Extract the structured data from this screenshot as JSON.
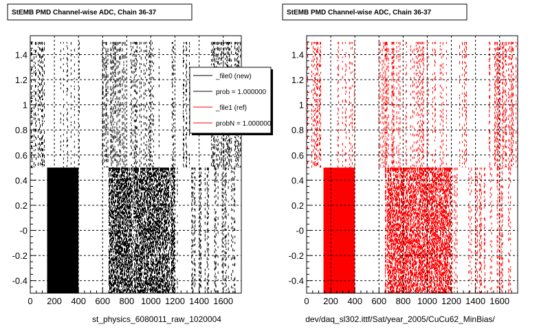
{
  "chart_data": [
    {
      "type": "scatter",
      "title": "StEMB PMD Channel-wise ADC, Chain 36-37",
      "xlabel": "st_physics_6080011_raw_1020004",
      "ylabel": "",
      "xlim": [
        0,
        1750
      ],
      "ylim": [
        -0.5,
        1.55
      ],
      "x_ticks": [
        0,
        200,
        400,
        600,
        800,
        1000,
        1200,
        1400,
        1600
      ],
      "y_ticks": [
        -0.4,
        -0.2,
        0,
        0.2,
        0.4,
        0.6,
        0.8,
        1,
        1.2,
        1.4
      ],
      "y_tick_labels": [
        "-0.4",
        "-0.2",
        "-0",
        "0.2",
        "0.4",
        "0.6",
        "0.8",
        "1",
        "1.2",
        "1.4"
      ],
      "grid": true,
      "marker_color": "#000000",
      "series": [
        {
          "point_bands": [
            {
              "x": [
                0,
                130
              ],
              "y": [
                0.5,
                1.5
              ],
              "density": 0.35
            },
            {
              "x": [
                250,
                410
              ],
              "y": [
                0.5,
                1.5
              ],
              "density": 0.25
            },
            {
              "x": [
                590,
                790
              ],
              "y": [
                0.5,
                1.5
              ],
              "density": 0.45
            },
            {
              "x": [
                820,
                1210
              ],
              "y": [
                0.5,
                1.5
              ],
              "density": 0.25
            },
            {
              "x": [
                1260,
                1330
              ],
              "y": [
                0.5,
                1.5
              ],
              "density": 0.35
            },
            {
              "x": [
                1500,
                1750
              ],
              "y": [
                0.5,
                1.5
              ],
              "density": 0.4
            },
            {
              "x": [
                140,
                400
              ],
              "y": [
                -0.5,
                0.5
              ],
              "density": 1.0
            },
            {
              "x": [
                650,
                1200
              ],
              "y": [
                -0.5,
                0.5
              ],
              "density": 0.7
            },
            {
              "x": [
                1200,
                1250
              ],
              "y": [
                -0.5,
                0.5
              ],
              "density": 0.35
            },
            {
              "x": [
                1330,
                1370
              ],
              "y": [
                -0.5,
                0.5
              ],
              "density": 0.3
            },
            {
              "x": [
                1390,
                1480
              ],
              "y": [
                -0.5,
                0.5
              ],
              "density": 0.35
            },
            {
              "x": [
                1520,
                1650
              ],
              "y": [
                -0.5,
                0.5
              ],
              "density": 0.3
            },
            {
              "x": [
                1660,
                1700
              ],
              "y": [
                -0.5,
                0.5
              ],
              "density": 0.3
            }
          ]
        }
      ],
      "legend": {
        "placement": "top-right",
        "entries": [
          {
            "label": "_file0 (new)",
            "color": "#000000"
          },
          {
            "label": "prob = 1.000000",
            "color": "#000000"
          },
          {
            "label": "_file1 (ref)",
            "color": "#ff0000"
          },
          {
            "label": "probN = 1.000000",
            "color": "#ff0000"
          }
        ]
      }
    },
    {
      "type": "scatter",
      "title": "StEMB PMD Channel-wise ADC, Chain 36-37",
      "xlabel": "dev/daq_sl302.ittf/Sat/year_2005/CuCu62_MinBias/",
      "ylabel": "",
      "xlim": [
        0,
        1750
      ],
      "ylim": [
        -0.5,
        1.55
      ],
      "x_ticks": [
        0,
        200,
        400,
        600,
        800,
        1000,
        1200,
        1400,
        1600
      ],
      "y_ticks": [
        -0.4,
        -0.2,
        0,
        0.2,
        0.4,
        0.6,
        0.8,
        1,
        1.2,
        1.4
      ],
      "y_tick_labels": [
        "-0.4",
        "-0.2",
        "-0",
        "0.2",
        "0.4",
        "0.6",
        "0.8",
        "1",
        "1.2",
        "1.4"
      ],
      "grid": true,
      "marker_color": "#ff0000",
      "series": [
        {
          "point_bands": [
            {
              "x": [
                0,
                130
              ],
              "y": [
                0.5,
                1.5
              ],
              "density": 0.35
            },
            {
              "x": [
                250,
                410
              ],
              "y": [
                0.5,
                1.5
              ],
              "density": 0.25
            },
            {
              "x": [
                590,
                790
              ],
              "y": [
                0.5,
                1.5
              ],
              "density": 0.45
            },
            {
              "x": [
                820,
                1210
              ],
              "y": [
                0.5,
                1.5
              ],
              "density": 0.25
            },
            {
              "x": [
                1260,
                1330
              ],
              "y": [
                0.5,
                1.5
              ],
              "density": 0.35
            },
            {
              "x": [
                1500,
                1750
              ],
              "y": [
                0.5,
                1.5
              ],
              "density": 0.4
            },
            {
              "x": [
                140,
                400
              ],
              "y": [
                -0.5,
                0.5
              ],
              "density": 1.0
            },
            {
              "x": [
                650,
                1200
              ],
              "y": [
                -0.5,
                0.5
              ],
              "density": 0.7
            },
            {
              "x": [
                1200,
                1250
              ],
              "y": [
                -0.5,
                0.5
              ],
              "density": 0.35
            },
            {
              "x": [
                1330,
                1370
              ],
              "y": [
                -0.5,
                0.5
              ],
              "density": 0.3
            },
            {
              "x": [
                1390,
                1480
              ],
              "y": [
                -0.5,
                0.5
              ],
              "density": 0.35
            },
            {
              "x": [
                1520,
                1650
              ],
              "y": [
                -0.5,
                0.5
              ],
              "density": 0.3
            },
            {
              "x": [
                1660,
                1700
              ],
              "y": [
                -0.5,
                0.5
              ],
              "density": 0.3
            }
          ]
        }
      ]
    }
  ]
}
